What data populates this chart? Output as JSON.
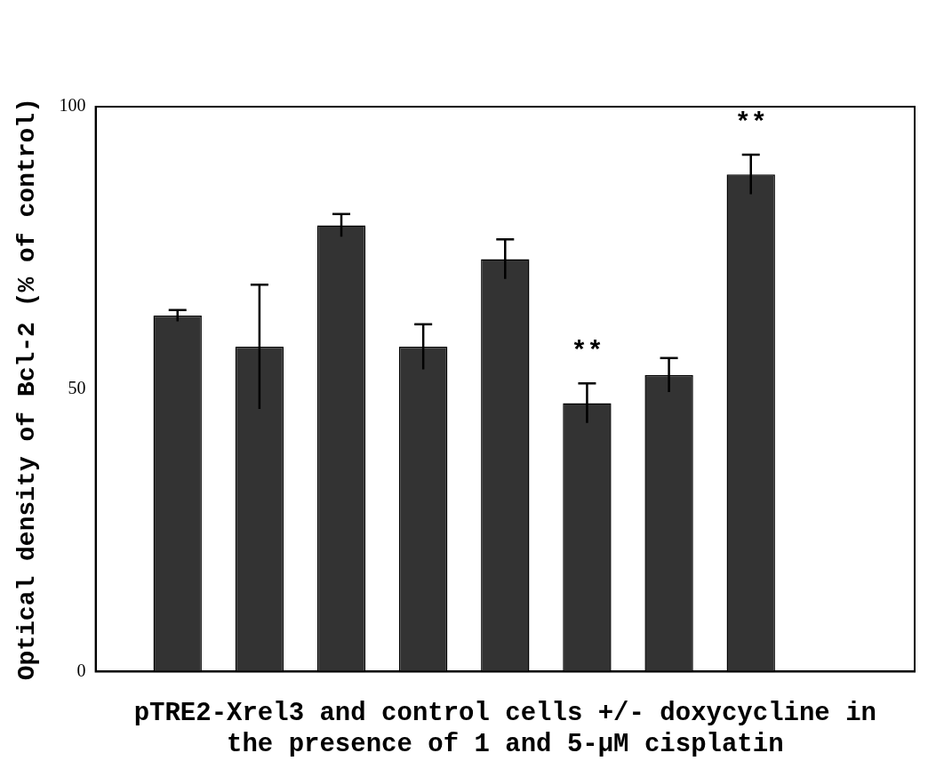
{
  "chart_data": {
    "type": "bar",
    "xlabel": "pTRE2-Xrel3 and control cells +/- doxycycline in the presence of 1 and 5-µM cisplatin",
    "ylabel": "Optical density of Bcl-2 (% of control)",
    "categories": [
      null,
      null,
      null,
      null,
      null,
      null,
      null,
      null
    ],
    "values": [
      63,
      57.5,
      79,
      57.5,
      73,
      47.5,
      52.5,
      88
    ],
    "errors": [
      1,
      11,
      2,
      4,
      3.5,
      3.5,
      3,
      3.5
    ],
    "value_labels": [
      null,
      null,
      null,
      null,
      null,
      "**",
      null,
      "**"
    ],
    "color": "#333333",
    "ylim": [
      0,
      100
    ],
    "yticks": [
      0,
      50,
      100
    ],
    "grid": false,
    "legend": false
  }
}
